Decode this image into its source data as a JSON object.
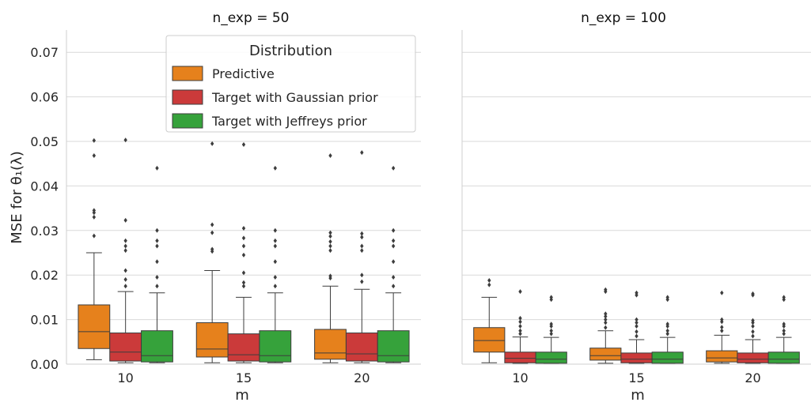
{
  "chart_data": [
    {
      "type": "box",
      "title": "n_exp = 50",
      "xlabel": "m",
      "ylabel": "MSE for θ₁(λ)",
      "categories": [
        "10",
        "15",
        "20"
      ],
      "ylim": [
        0,
        0.075
      ],
      "yticks": [
        "0.00",
        "0.01",
        "0.02",
        "0.03",
        "0.04",
        "0.05",
        "0.06",
        "0.07"
      ],
      "grid": true,
      "legend": {
        "title": "Distribution",
        "placement": "top-center",
        "entries": [
          "Predictive",
          "Target with Gaussian prior",
          "Target with Jeffreys prior"
        ]
      },
      "series": [
        {
          "name": "Predictive",
          "color": "#e6811c",
          "boxes": [
            {
              "whislo": 0.001,
              "q1": 0.0035,
              "med": 0.0073,
              "q3": 0.0133,
              "whishi": 0.025,
              "fliers": [
                0.0288,
                0.033,
                0.034,
                0.0345,
                0.0468,
                0.0502
              ]
            },
            {
              "whislo": 0.0003,
              "q1": 0.0016,
              "med": 0.0034,
              "q3": 0.0093,
              "whishi": 0.021,
              "fliers": [
                0.0253,
                0.0258,
                0.0295,
                0.0313,
                0.0495
              ]
            },
            {
              "whislo": 0.0003,
              "q1": 0.0011,
              "med": 0.0025,
              "q3": 0.0078,
              "whishi": 0.0175,
              "fliers": [
                0.0193,
                0.0198,
                0.0255,
                0.0265,
                0.0275,
                0.0287,
                0.0295,
                0.0468
              ]
            }
          ]
        },
        {
          "name": "Target with Gaussian prior",
          "color": "#cb3a3a",
          "boxes": [
            {
              "whislo": 0.0003,
              "q1": 0.0007,
              "med": 0.0027,
              "q3": 0.007,
              "whishi": 0.0163,
              "fliers": [
                0.0175,
                0.019,
                0.021,
                0.0255,
                0.0265,
                0.0277,
                0.0323,
                0.0503
              ]
            },
            {
              "whislo": 0.0003,
              "q1": 0.0007,
              "med": 0.0021,
              "q3": 0.0068,
              "whishi": 0.015,
              "fliers": [
                0.0175,
                0.0183,
                0.0205,
                0.0245,
                0.0265,
                0.0283,
                0.0305,
                0.0493
              ]
            },
            {
              "whislo": 0.0003,
              "q1": 0.0007,
              "med": 0.0023,
              "q3": 0.007,
              "whishi": 0.0168,
              "fliers": [
                0.0185,
                0.02,
                0.0255,
                0.0265,
                0.0285,
                0.0293,
                0.0475
              ]
            }
          ]
        },
        {
          "name": "Target with Jeffreys prior",
          "color": "#36a23b",
          "boxes": [
            {
              "whislo": 0.0003,
              "q1": 0.0005,
              "med": 0.0019,
              "q3": 0.0075,
              "whishi": 0.016,
              "fliers": [
                0.0175,
                0.0195,
                0.023,
                0.0265,
                0.0277,
                0.03,
                0.044
              ]
            },
            {
              "whislo": 0.0003,
              "q1": 0.0005,
              "med": 0.0019,
              "q3": 0.0075,
              "whishi": 0.016,
              "fliers": [
                0.0175,
                0.0195,
                0.023,
                0.0265,
                0.0277,
                0.03,
                0.044
              ]
            },
            {
              "whislo": 0.0003,
              "q1": 0.0005,
              "med": 0.0019,
              "q3": 0.0075,
              "whishi": 0.016,
              "fliers": [
                0.0175,
                0.0195,
                0.023,
                0.0265,
                0.0277,
                0.03,
                0.044
              ]
            }
          ]
        }
      ]
    },
    {
      "type": "box",
      "title": "n_exp  = 100",
      "xlabel": "m",
      "categories": [
        "10",
        "15",
        "20"
      ],
      "ylim": [
        0,
        0.075
      ],
      "grid": true,
      "series": [
        {
          "name": "Predictive",
          "color": "#e6811c",
          "boxes": [
            {
              "whislo": 0.0003,
              "q1": 0.0027,
              "med": 0.0053,
              "q3": 0.0082,
              "whishi": 0.015,
              "fliers": [
                0.0178,
                0.0188
              ]
            },
            {
              "whislo": 0.0002,
              "q1": 0.0009,
              "med": 0.0019,
              "q3": 0.0036,
              "whishi": 0.0075,
              "fliers": [
                0.0082,
                0.0093,
                0.01,
                0.0107,
                0.0113,
                0.0163,
                0.0167
              ]
            },
            {
              "whislo": 0.0002,
              "q1": 0.0005,
              "med": 0.0014,
              "q3": 0.003,
              "whishi": 0.0065,
              "fliers": [
                0.0075,
                0.0083,
                0.0095,
                0.01,
                0.016
              ]
            }
          ]
        },
        {
          "name": "Target with Gaussian prior",
          "color": "#cb3a3a",
          "boxes": [
            {
              "whislo": 0.0002,
              "q1": 0.0003,
              "med": 0.0013,
              "q3": 0.0027,
              "whishi": 0.0061,
              "fliers": [
                0.0068,
                0.0075,
                0.0085,
                0.0095,
                0.0103,
                0.0163
              ]
            },
            {
              "whislo": 0.0002,
              "q1": 0.0003,
              "med": 0.0011,
              "q3": 0.0025,
              "whishi": 0.0055,
              "fliers": [
                0.0063,
                0.0073,
                0.0085,
                0.0093,
                0.01,
                0.0155,
                0.016
              ]
            },
            {
              "whislo": 0.0002,
              "q1": 0.0003,
              "med": 0.0011,
              "q3": 0.0025,
              "whishi": 0.0055,
              "fliers": [
                0.0063,
                0.0073,
                0.0085,
                0.0093,
                0.0098,
                0.0155,
                0.0158
              ]
            }
          ]
        },
        {
          "name": "Target with Jeffreys prior",
          "color": "#36a23b",
          "boxes": [
            {
              "whislo": 0.0002,
              "q1": 0.0002,
              "med": 0.0011,
              "q3": 0.0027,
              "whishi": 0.006,
              "fliers": [
                0.0068,
                0.0075,
                0.0085,
                0.009,
                0.0145,
                0.015
              ]
            },
            {
              "whislo": 0.0002,
              "q1": 0.0002,
              "med": 0.0011,
              "q3": 0.0027,
              "whishi": 0.006,
              "fliers": [
                0.0068,
                0.0075,
                0.0085,
                0.009,
                0.0145,
                0.015
              ]
            },
            {
              "whislo": 0.0002,
              "q1": 0.0002,
              "med": 0.0011,
              "q3": 0.0027,
              "whishi": 0.006,
              "fliers": [
                0.0068,
                0.0075,
                0.0085,
                0.009,
                0.0145,
                0.015
              ]
            }
          ]
        }
      ]
    }
  ]
}
